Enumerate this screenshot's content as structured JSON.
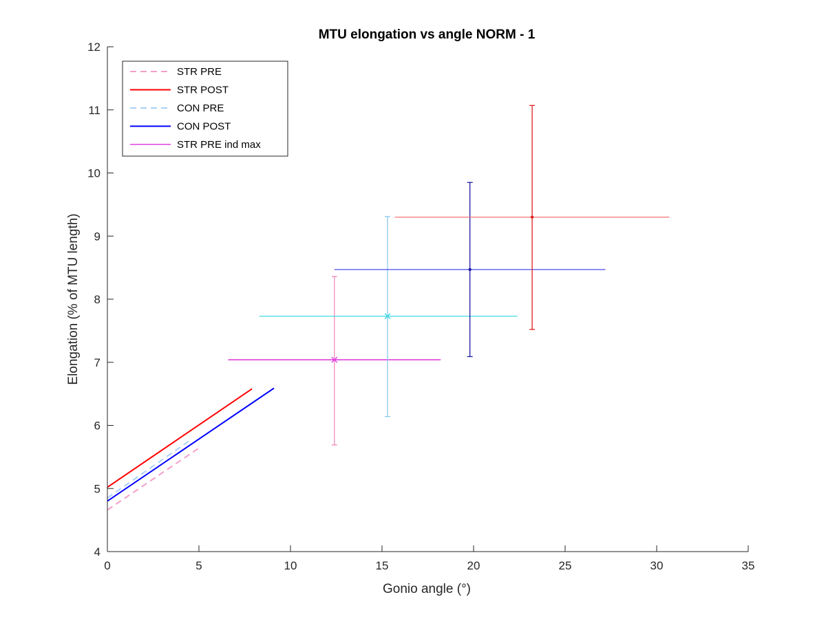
{
  "chart_data": {
    "type": "line",
    "title": "MTU elongation vs angle NORM - 1",
    "xlabel": "Gonio angle (°)",
    "ylabel": "Elongation (% of MTU length)",
    "xlim": [
      0,
      35
    ],
    "ylim": [
      4,
      12
    ],
    "xticks": [
      0,
      5,
      10,
      15,
      20,
      25,
      30,
      35
    ],
    "yticks": [
      4,
      5,
      6,
      7,
      8,
      9,
      10,
      11,
      12
    ],
    "grid": false,
    "legend_position": "top-left",
    "series": [
      {
        "name": "STR PRE",
        "color": "#f59ec8",
        "style": "dashed",
        "x": [
          0,
          5.1
        ],
        "y": [
          4.66,
          5.66
        ]
      },
      {
        "name": "STR POST",
        "color": "#ff0000",
        "style": "solid",
        "x": [
          0,
          7.9
        ],
        "y": [
          5.02,
          6.58
        ]
      },
      {
        "name": "CON PRE",
        "color": "#a9d0f5",
        "style": "dashed",
        "x": [
          0,
          4.6
        ],
        "y": [
          4.85,
          5.78
        ]
      },
      {
        "name": "CON POST",
        "color": "#0000ff",
        "style": "solid",
        "x": [
          0,
          9.1
        ],
        "y": [
          4.8,
          6.59
        ]
      },
      {
        "name": "STR PRE ind max",
        "color": "#e040e0",
        "style": "solid",
        "x": [
          6.6,
          18.2
        ],
        "y": [
          7.04,
          7.04
        ]
      }
    ],
    "error_points": [
      {
        "x": 12.4,
        "y": 7.04,
        "xneg": 5.8,
        "xpos": 5.8,
        "yneg": 1.35,
        "ypos": 1.32,
        "marker": "x",
        "hcolor": "#e040e0",
        "vcolor": "#f58ab8"
      },
      {
        "x": 15.3,
        "y": 7.73,
        "xneg": 7.0,
        "xpos": 7.1,
        "yneg": 1.59,
        "ypos": 1.58,
        "marker": "x",
        "hcolor": "#40d8e0",
        "vcolor": "#8cc8f0"
      },
      {
        "x": 19.8,
        "y": 8.47,
        "xneg": 7.4,
        "xpos": 7.4,
        "yneg": 1.38,
        "ypos": 1.38,
        "marker": "dot",
        "hcolor": "#4a4af0",
        "vcolor": "#1a1aa0"
      },
      {
        "x": 23.2,
        "y": 9.3,
        "xneg": 7.5,
        "xpos": 7.5,
        "yneg": 1.78,
        "ypos": 1.77,
        "marker": "dot",
        "hcolor": "#f07070",
        "vcolor": "#e02020"
      }
    ]
  }
}
